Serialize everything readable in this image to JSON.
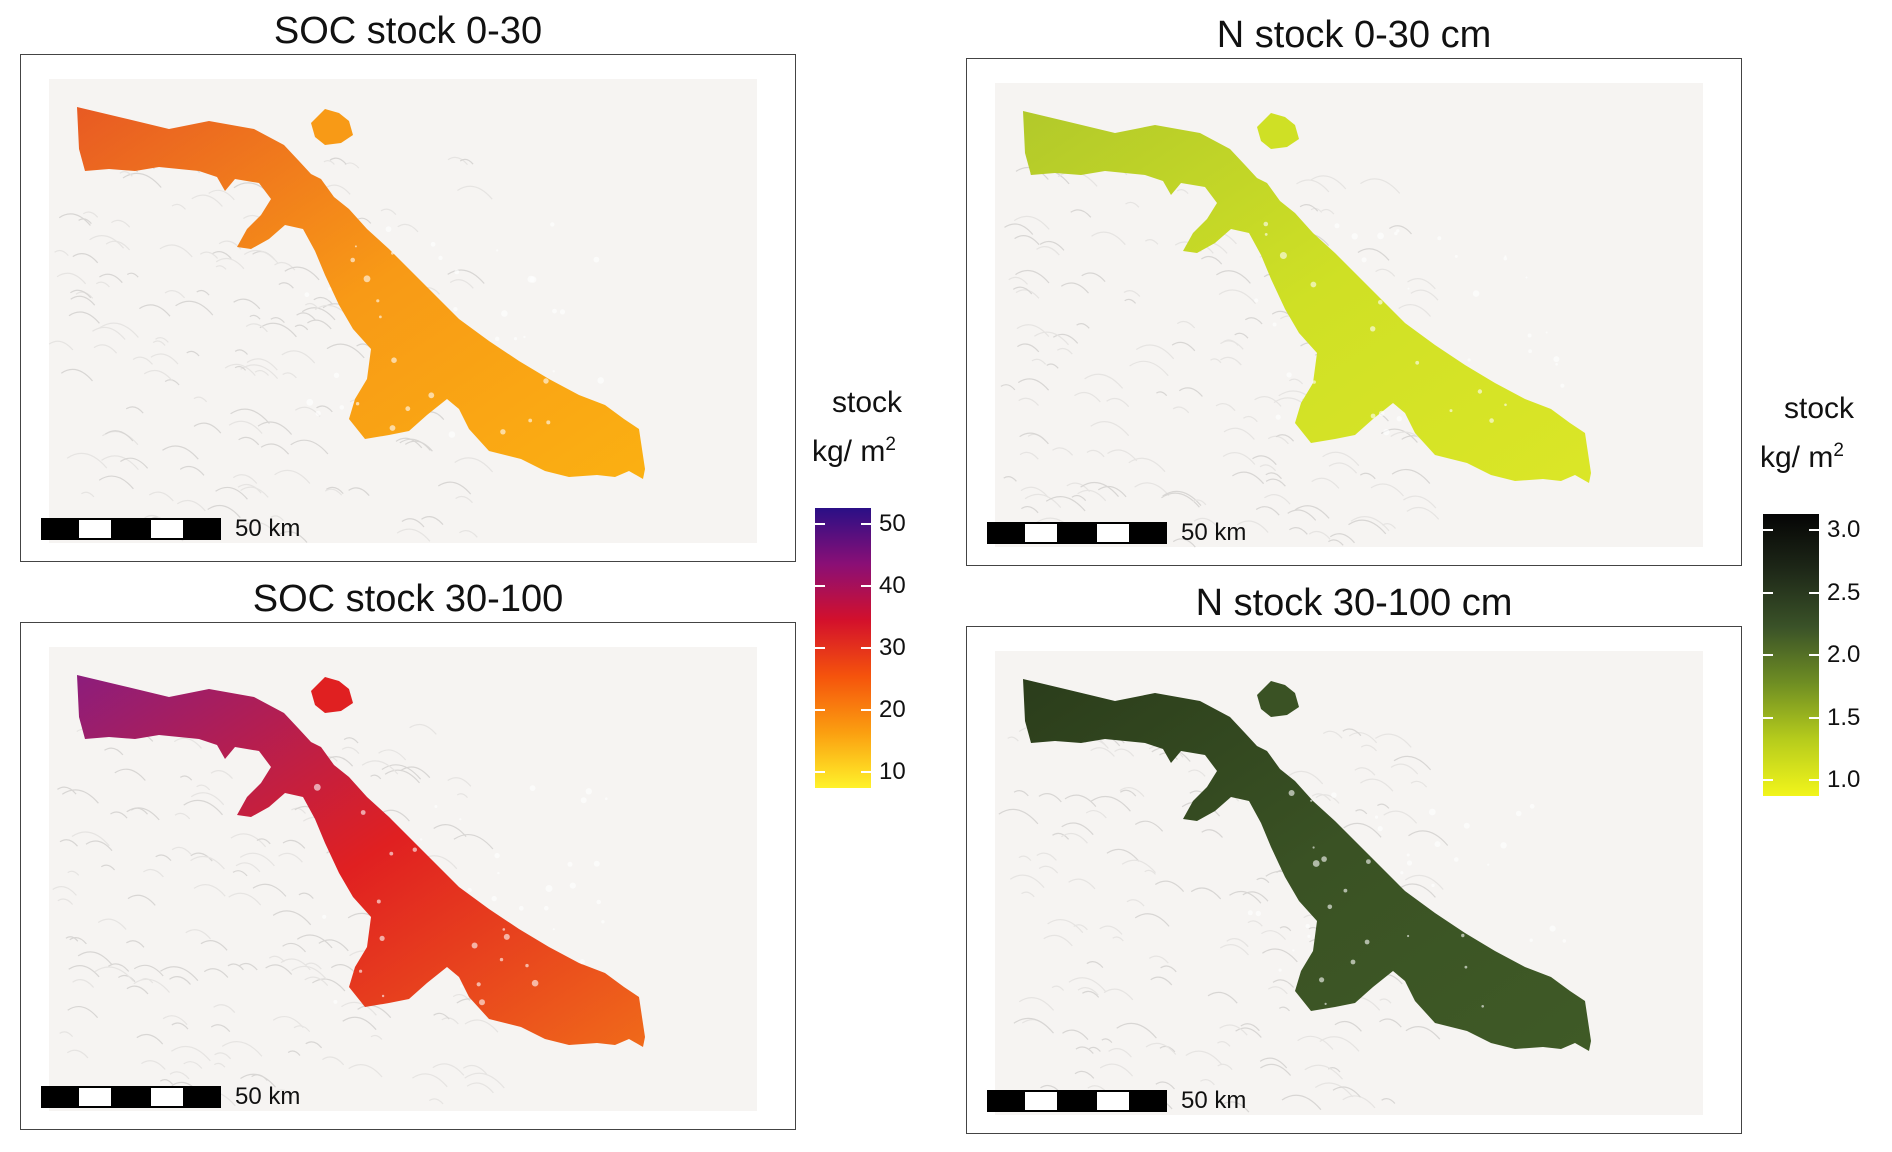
{
  "panels": {
    "soc_0_30": {
      "title": "SOC stock 0-30",
      "scale_label": "50 km"
    },
    "soc_30_100": {
      "title": "SOC stock 30-100",
      "scale_label": "50 km"
    },
    "n_0_30": {
      "title": "N stock 0-30 cm",
      "scale_label": "50 km"
    },
    "n_30_100": {
      "title": "N stock 30-100 cm",
      "scale_label": "50 km"
    }
  },
  "legends": {
    "soc": {
      "title": "stock",
      "unit": "kg/ m",
      "unit_exp": "2",
      "ticks": [
        "50",
        "40",
        "30",
        "20",
        "10"
      ],
      "colors": [
        "#2a0f86",
        "#8a0f76",
        "#d3102c",
        "#f5530c",
        "#fb9e10",
        "#fff22a"
      ]
    },
    "n": {
      "title": "stock",
      "unit": "kg/ m",
      "unit_exp": "2",
      "ticks": [
        "3.0",
        "2.5",
        "2.0",
        "1.5",
        "1.0"
      ],
      "colors": [
        "#050505",
        "#1e2818",
        "#3a5228",
        "#6f8e23",
        "#b6cc1c",
        "#f2f51b"
      ]
    }
  },
  "fill_colors": {
    "soc_0_30": [
      "#e85a23",
      "#f89a16",
      "#fbb012"
    ],
    "soc_30_100": [
      "#8c1d7c",
      "#e02021",
      "#f06a1a"
    ],
    "n_0_30": [
      "#b2c92a",
      "#cfe025",
      "#dbe627"
    ],
    "n_30_100": [
      "#2b3d1b",
      "#3a5224",
      "#3f5a26"
    ]
  }
}
